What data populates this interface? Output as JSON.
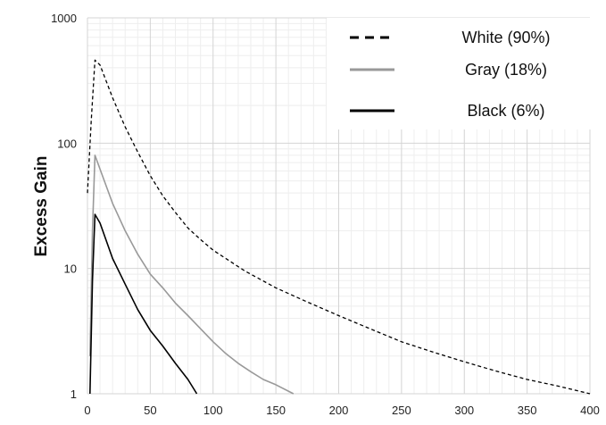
{
  "chart_data": {
    "type": "line",
    "title": "",
    "xlabel": "",
    "ylabel": "Excess Gain",
    "xlim": [
      0,
      400
    ],
    "ylim": [
      1,
      1000
    ],
    "yscale": "log",
    "grid": true,
    "legend_position": "top-right",
    "x_ticks": [
      "0",
      "50",
      "100",
      "150",
      "200",
      "250",
      "300",
      "350",
      "400"
    ],
    "y_ticks": [
      "1",
      "10",
      "100",
      "1000"
    ],
    "series": [
      {
        "name": "White (90%)",
        "style": "dashed",
        "color": "#000000",
        "points": [
          [
            0,
            40
          ],
          [
            3,
            150
          ],
          [
            6,
            460
          ],
          [
            10,
            420
          ],
          [
            20,
            230
          ],
          [
            30,
            135
          ],
          [
            40,
            85
          ],
          [
            50,
            55
          ],
          [
            60,
            38
          ],
          [
            70,
            28
          ],
          [
            80,
            21
          ],
          [
            90,
            17
          ],
          [
            100,
            14
          ],
          [
            125,
            9.6
          ],
          [
            150,
            7
          ],
          [
            175,
            5.4
          ],
          [
            200,
            4.2
          ],
          [
            225,
            3.3
          ],
          [
            250,
            2.6
          ],
          [
            275,
            2.15
          ],
          [
            300,
            1.8
          ],
          [
            325,
            1.52
          ],
          [
            350,
            1.3
          ],
          [
            375,
            1.15
          ],
          [
            400,
            1.0
          ]
        ]
      },
      {
        "name": "Gray (18%)",
        "style": "solid",
        "color": "#999999",
        "points": [
          [
            2,
            2
          ],
          [
            4,
            20
          ],
          [
            6,
            80
          ],
          [
            10,
            62
          ],
          [
            20,
            33
          ],
          [
            30,
            20
          ],
          [
            40,
            13
          ],
          [
            50,
            9
          ],
          [
            60,
            7
          ],
          [
            70,
            5.3
          ],
          [
            80,
            4.2
          ],
          [
            90,
            3.3
          ],
          [
            100,
            2.6
          ],
          [
            110,
            2.1
          ],
          [
            120,
            1.75
          ],
          [
            130,
            1.5
          ],
          [
            140,
            1.3
          ],
          [
            150,
            1.18
          ],
          [
            164,
            1.0
          ]
        ]
      },
      {
        "name": "Black (6%)",
        "style": "solid",
        "color": "#000000",
        "points": [
          [
            2,
            1
          ],
          [
            4,
            8
          ],
          [
            6,
            27
          ],
          [
            10,
            23
          ],
          [
            20,
            12
          ],
          [
            30,
            7.5
          ],
          [
            40,
            4.7
          ],
          [
            50,
            3.2
          ],
          [
            60,
            2.4
          ],
          [
            70,
            1.75
          ],
          [
            80,
            1.3
          ],
          [
            87,
            1.0
          ]
        ]
      }
    ]
  }
}
